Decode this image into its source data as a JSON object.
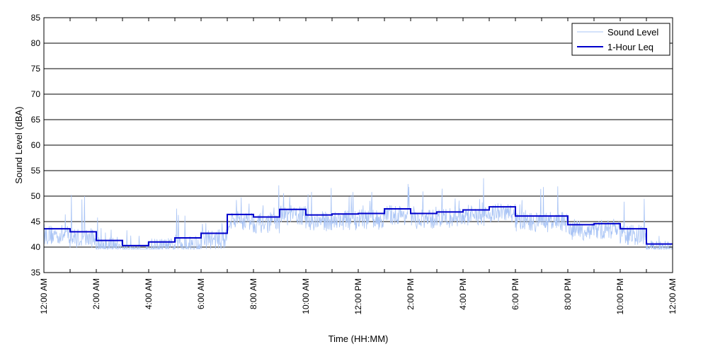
{
  "chart_data": {
    "type": "line",
    "title": "",
    "xlabel": "Time (HH:MM)",
    "ylabel": "Sound Level (dBA)",
    "ylim": [
      35,
      85
    ],
    "yticks": [
      35,
      40,
      45,
      50,
      55,
      60,
      65,
      70,
      75,
      80,
      85
    ],
    "xlim_hours": [
      0,
      24
    ],
    "xtick_labels": [
      "12:00 AM",
      "2:00 AM",
      "4:00 AM",
      "6:00 AM",
      "8:00 AM",
      "10:00 AM",
      "12:00 PM",
      "2:00 PM",
      "4:00 PM",
      "6:00 PM",
      "8:00 PM",
      "10:00 PM",
      "12:00 AM"
    ],
    "grid": "horizontal",
    "legend_position": "top-right",
    "series": [
      {
        "name": "Sound Level",
        "color": "#a9c4f5",
        "description_values_per_hour_mean": [
          43.6,
          43.0,
          41.3,
          40.3,
          41.0,
          41.8,
          42.7,
          46.4,
          45.9,
          47.4,
          46.3,
          46.5,
          46.6,
          47.5,
          46.6,
          46.9,
          47.3,
          47.9,
          46.1,
          46.1,
          44.4,
          44.6,
          43.6,
          40.6
        ],
        "peak_max": [
          49,
          51,
          46,
          44,
          45,
          51,
          46,
          53,
          54,
          51,
          52,
          52,
          53,
          56,
          54,
          55,
          54,
          57,
          52,
          52,
          50,
          52,
          50,
          44
        ]
      },
      {
        "name": "1-Hour Leq",
        "color": "#0000cc",
        "hours": [
          0,
          1,
          2,
          3,
          4,
          5,
          6,
          7,
          8,
          9,
          10,
          11,
          12,
          13,
          14,
          15,
          16,
          17,
          18,
          19,
          20,
          21,
          22,
          23
        ],
        "values": [
          43.6,
          43.0,
          41.3,
          40.3,
          41.0,
          41.8,
          42.7,
          46.4,
          45.9,
          47.4,
          46.3,
          46.5,
          46.6,
          47.5,
          46.6,
          46.9,
          47.3,
          47.9,
          46.1,
          46.1,
          44.4,
          44.6,
          43.6,
          40.6
        ]
      }
    ]
  }
}
